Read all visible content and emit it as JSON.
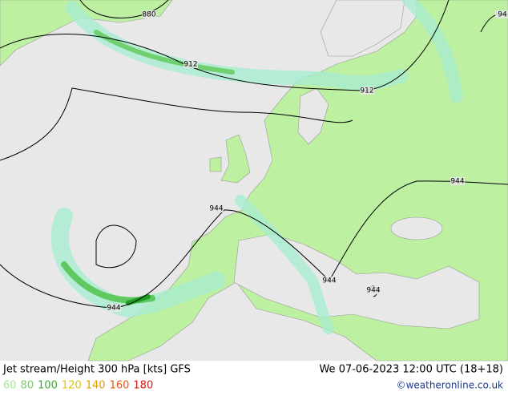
{
  "header": {
    "title": "Jet stream/Height 300 hPa [kts] GFS",
    "datetime": "We 07-06-2023 12:00 UTC (18+18)",
    "credit": "©weatheronline.co.uk"
  },
  "legend": [
    {
      "label": "60",
      "color": "#a8e890"
    },
    {
      "label": "80",
      "color": "#78d060"
    },
    {
      "label": "100",
      "color": "#30b030"
    },
    {
      "label": "120",
      "color": "#d8c800"
    },
    {
      "label": "140",
      "color": "#e89a00"
    },
    {
      "label": "160",
      "color": "#e85a10"
    },
    {
      "label": "180",
      "color": "#d81818"
    }
  ],
  "contour_labels": [
    "880",
    "912",
    "912",
    "944",
    "944",
    "944",
    "944",
    "944",
    "94"
  ]
}
